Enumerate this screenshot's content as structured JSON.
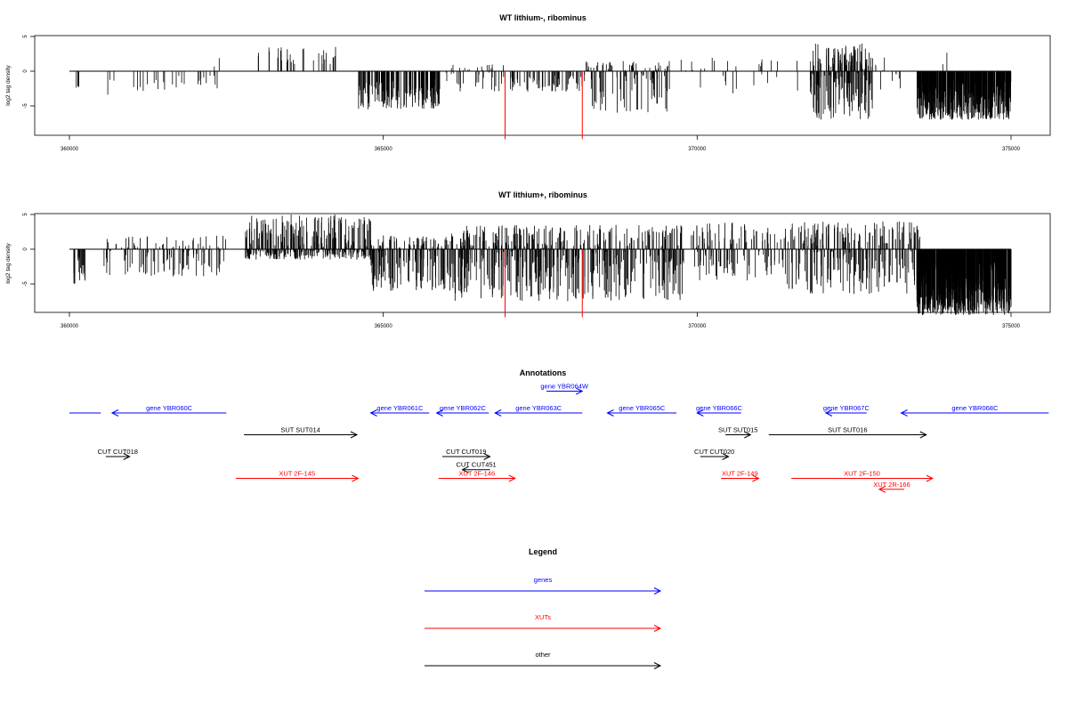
{
  "chart_data": [
    {
      "type": "bar",
      "title": "WT lithium-, ribominus",
      "ylabel": "log2 tag density",
      "xlim": [
        360000,
        375000
      ],
      "ylim": [
        -10,
        6
      ],
      "x_ticks": [
        "360000",
        "365000",
        "370000",
        "375000"
      ],
      "y_ticks": [
        "-5",
        "0",
        "5"
      ],
      "series_color": "#000000",
      "highlight_color": "#ff0000",
      "highlights": [
        {
          "x": 366940,
          "y": -9.8
        },
        {
          "x": 368170,
          "y": -9.8
        }
      ],
      "segments": [
        {
          "x_start": 360100,
          "x_end": 360150,
          "density": 9,
          "y_min": -3.0,
          "y_max": 0.0
        },
        {
          "x_start": 360600,
          "x_end": 360650,
          "density": 3,
          "y_min": -4.0,
          "y_max": 0.0
        },
        {
          "x_start": 360700,
          "x_end": 362400,
          "density": 1.5,
          "y_min": -3.0,
          "y_max": 0.0
        },
        {
          "x_start": 362300,
          "x_end": 362400,
          "density": 1.5,
          "y_min": 0.0,
          "y_max": 2.5
        },
        {
          "x_start": 363000,
          "x_end": 364500,
          "density": 2,
          "y_min": 0.0,
          "y_max": 3.5
        },
        {
          "x_start": 364600,
          "x_end": 365900,
          "density": 12,
          "y_min": -5.5,
          "y_max": 0.0
        },
        {
          "x_start": 366000,
          "x_end": 367000,
          "density": 5,
          "y_min": -3.0,
          "y_max": 1.0
        },
        {
          "x_start": 367000,
          "x_end": 368200,
          "density": 5,
          "y_min": -3.0,
          "y_max": 0.0
        },
        {
          "x_start": 368200,
          "x_end": 369600,
          "density": 8,
          "y_min": -6.0,
          "y_max": 1.5
        },
        {
          "x_start": 369700,
          "x_end": 371600,
          "density": 1.5,
          "y_min": -3.5,
          "y_max": 2.0
        },
        {
          "x_start": 371800,
          "x_end": 372800,
          "density": 20,
          "y_min": -7.0,
          "y_max": 4.0
        },
        {
          "x_start": 372800,
          "x_end": 373300,
          "density": 2,
          "y_min": -3.0,
          "y_max": 2.0
        },
        {
          "x_start": 373500,
          "x_end": 375000,
          "density": 30,
          "y_min": -7.0,
          "y_max": 0.0
        },
        {
          "x_start": 373900,
          "x_end": 374000,
          "density": 2,
          "y_min": 0.0,
          "y_max": 2.8
        }
      ]
    },
    {
      "type": "bar",
      "title": "WT lithium+, ribominus",
      "ylabel": "log2 tag density",
      "xlim": [
        360000,
        375000
      ],
      "ylim": [
        -10,
        6
      ],
      "x_ticks": [
        "360000",
        "365000",
        "370000",
        "375000"
      ],
      "y_ticks": [
        "-5",
        "0",
        "5"
      ],
      "series_color": "#000000",
      "highlight_color": "#ff0000",
      "highlights": [
        {
          "x": 366940,
          "y": -9.8
        },
        {
          "x": 368170,
          "y": -9.8
        }
      ],
      "segments": [
        {
          "x_start": 360050,
          "x_end": 360250,
          "density": 12,
          "y_min": -5.0,
          "y_max": 0.0
        },
        {
          "x_start": 360500,
          "x_end": 362500,
          "density": 6,
          "y_min": -4.0,
          "y_max": 2.0
        },
        {
          "x_start": 362800,
          "x_end": 364800,
          "density": 18,
          "y_min": -1.5,
          "y_max": 5.0
        },
        {
          "x_start": 364800,
          "x_end": 366000,
          "density": 14,
          "y_min": -6.0,
          "y_max": 2.0
        },
        {
          "x_start": 366000,
          "x_end": 369800,
          "density": 14,
          "y_min": -7.5,
          "y_max": 3.5
        },
        {
          "x_start": 369900,
          "x_end": 371400,
          "density": 8,
          "y_min": -4.5,
          "y_max": 4.0
        },
        {
          "x_start": 371400,
          "x_end": 373500,
          "density": 12,
          "y_min": -6.5,
          "y_max": 4.0
        },
        {
          "x_start": 373500,
          "x_end": 375000,
          "density": 45,
          "y_min": -9.5,
          "y_max": 0.0
        },
        {
          "x_start": 373400,
          "x_end": 373600,
          "density": 3,
          "y_min": 0.0,
          "y_max": 3.5
        }
      ]
    }
  ],
  "annotations": {
    "title": "Annotations",
    "features": [
      {
        "label": "",
        "kind": "gene",
        "x_start": 360000,
        "x_end": 360500,
        "strand": "-",
        "row": 0
      },
      {
        "label": "gene YBR060C",
        "kind": "gene",
        "x_start": 360680,
        "x_end": 362500,
        "strand": "-",
        "row": 0
      },
      {
        "label": "gene YBR061C",
        "kind": "gene",
        "x_start": 364800,
        "x_end": 365730,
        "strand": "-",
        "row": 0
      },
      {
        "label": "gene YBR062C",
        "kind": "gene",
        "x_start": 365850,
        "x_end": 366680,
        "strand": "-",
        "row": 0
      },
      {
        "label": "gene YBR063C",
        "kind": "gene",
        "x_start": 366780,
        "x_end": 368170,
        "strand": "-",
        "row": 0
      },
      {
        "label": "gene YBR064W",
        "kind": "gene",
        "x_start": 367600,
        "x_end": 368170,
        "strand": "+",
        "row": -1
      },
      {
        "label": "gene YBR065C",
        "kind": "gene",
        "x_start": 368570,
        "x_end": 369670,
        "strand": "-",
        "row": 0
      },
      {
        "label": "gene YBR066C",
        "kind": "gene",
        "x_start": 370000,
        "x_end": 370700,
        "strand": "-",
        "row": 0
      },
      {
        "label": "gene YBR067C",
        "kind": "gene",
        "x_start": 372050,
        "x_end": 372700,
        "strand": "-",
        "row": 0
      },
      {
        "label": "gene YBR068C",
        "kind": "gene",
        "x_start": 373250,
        "x_end": 375600,
        "strand": "-",
        "row": 0
      },
      {
        "label": "SUT SUT014",
        "kind": "other",
        "x_start": 362780,
        "x_end": 364580,
        "strand": "+",
        "row": 1
      },
      {
        "label": "SUT SUT015",
        "kind": "other",
        "x_start": 370450,
        "x_end": 370850,
        "strand": "+",
        "row": 1
      },
      {
        "label": "SUT SUT016",
        "kind": "other",
        "x_start": 371140,
        "x_end": 373650,
        "strand": "+",
        "row": 1
      },
      {
        "label": "CUT CUT018",
        "kind": "other",
        "x_start": 360580,
        "x_end": 360960,
        "strand": "+",
        "row": 2
      },
      {
        "label": "CUT CUT019",
        "kind": "other",
        "x_start": 365940,
        "x_end": 366700,
        "strand": "+",
        "row": 2
      },
      {
        "label": "CUT CUT451",
        "kind": "other",
        "x_start": 366260,
        "x_end": 366700,
        "strand": "-",
        "row": 2.6
      },
      {
        "label": "CUT CUT020",
        "kind": "other",
        "x_start": 370050,
        "x_end": 370500,
        "strand": "+",
        "row": 2
      },
      {
        "label": "XUT 2F-145",
        "kind": "xut",
        "x_start": 362650,
        "x_end": 364600,
        "strand": "+",
        "row": 3
      },
      {
        "label": "XUT 2F-146",
        "kind": "xut",
        "x_start": 365880,
        "x_end": 367100,
        "strand": "+",
        "row": 3
      },
      {
        "label": "XUT 2F-149",
        "kind": "xut",
        "x_start": 370380,
        "x_end": 370980,
        "strand": "+",
        "row": 3
      },
      {
        "label": "XUT 2F-150",
        "kind": "xut",
        "x_start": 371500,
        "x_end": 373750,
        "strand": "+",
        "row": 3
      },
      {
        "label": "XUT 2R-166",
        "kind": "xut",
        "x_start": 372900,
        "x_end": 373300,
        "strand": "-",
        "row": 3.5
      }
    ]
  },
  "legend": {
    "title": "Legend",
    "items": [
      {
        "label": "genes",
        "color": "#0000ff"
      },
      {
        "label": "XUTs",
        "color": "#ff0000"
      },
      {
        "label": "other",
        "color": "#000000"
      }
    ]
  },
  "colors": {
    "gene": "#0000ff",
    "xut": "#ff0000",
    "other": "#000000"
  }
}
